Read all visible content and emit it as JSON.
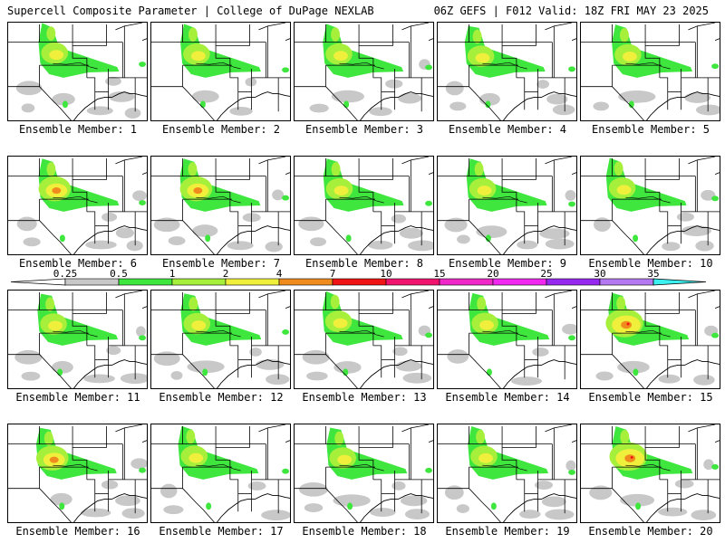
{
  "header": {
    "title_left": "Supercell Composite Parameter | College of DuPage NEXLAB",
    "title_right": "06Z GEFS | F012 Valid: 18Z FRI MAY 23 2025"
  },
  "panel_label_prefix": "Ensemble Member: ",
  "members": [
    1,
    2,
    3,
    4,
    5,
    6,
    7,
    8,
    9,
    10,
    11,
    12,
    13,
    14,
    15,
    16,
    17,
    18,
    19,
    20
  ],
  "legend": {
    "ticks": [
      "0.25",
      "0.5",
      "1",
      "2",
      "4",
      "7",
      "10",
      "15",
      "20",
      "25",
      "30",
      "35"
    ],
    "colors": [
      "#c8c8c8",
      "#3ee63e",
      "#a6f03c",
      "#f0f03c",
      "#f08c1e",
      "#f01414",
      "#f0146e",
      "#f028c8",
      "#f028f0",
      "#9628f0",
      "#b478f0",
      "#3cf0f0"
    ]
  },
  "member_intensity": [
    1,
    1,
    1,
    1,
    1,
    2,
    2,
    1,
    1,
    1,
    1,
    1,
    1,
    1,
    3,
    2,
    1,
    1,
    1,
    3
  ]
}
